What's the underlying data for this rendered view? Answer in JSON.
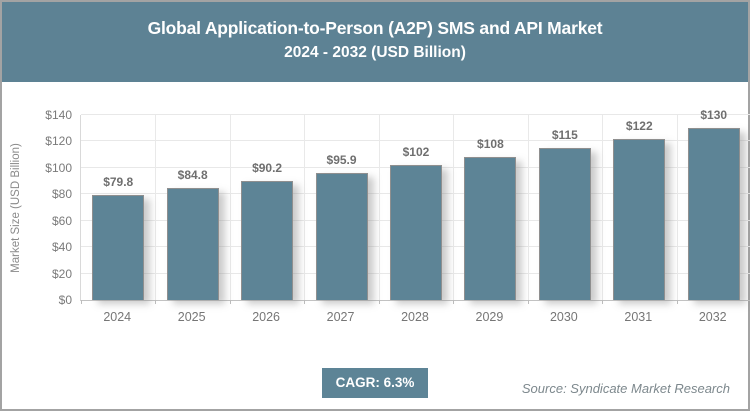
{
  "header": {
    "title_line1": "Global Application-to-Person (A2P) SMS and API Market",
    "title_line2": "2024 - 2032 (USD Billion)"
  },
  "chart_data": {
    "type": "bar",
    "title": "Global Application-to-Person (A2P) SMS and API Market 2024 - 2032 (USD Billion)",
    "categories": [
      "2024",
      "2025",
      "2026",
      "2027",
      "2028",
      "2029",
      "2030",
      "2031",
      "2032"
    ],
    "values": [
      79.8,
      84.8,
      90.2,
      95.9,
      102,
      108,
      115,
      122,
      130
    ],
    "value_labels": [
      "$79.8",
      "$84.8",
      "$90.2",
      "$95.9",
      "$102",
      "$108",
      "$115",
      "$122",
      "$130"
    ],
    "xlabel": "",
    "ylabel": "Market Size (USD Billion)",
    "ylim": [
      0,
      140
    ],
    "ytick_values": [
      0,
      20,
      40,
      60,
      80,
      100,
      120,
      140
    ],
    "ytick_labels": [
      "$0",
      "$20",
      "$40",
      "$60",
      "$80",
      "$100",
      "$120",
      "$140"
    ],
    "grid": true,
    "legend": false
  },
  "footer": {
    "cagr_label": "CAGR: 6.3%",
    "source": "Source: Syndicate Market Research"
  },
  "colors": {
    "header_bg": "#5d8294",
    "bar_fill": "#5d8496",
    "badge_bg": "#5d8496",
    "grid_line": "#e8e8e8",
    "axis_line": "#c2c2c2",
    "label_text": "#7a7a7a",
    "title_text": "#ffffff"
  }
}
